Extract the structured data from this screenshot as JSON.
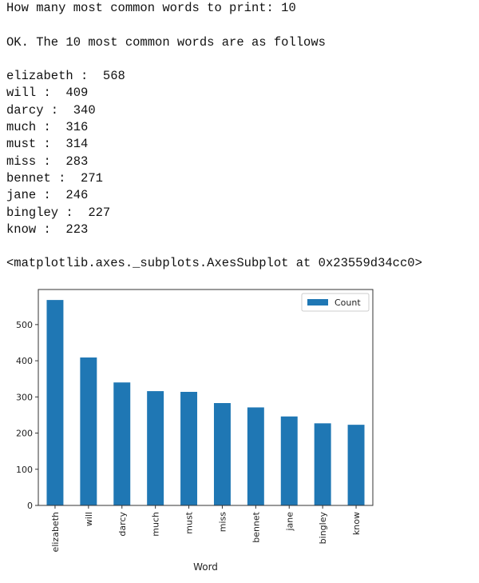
{
  "output": {
    "prompt_line": "How many most common words to print: 10",
    "status_line": "OK. The 10 most common words are as follows",
    "word_counts": [
      "elizabeth :  568",
      "will :  409",
      "darcy :  340",
      "much :  316",
      "must :  314",
      "miss :  283",
      "bennet :  271",
      "jane :  246",
      "bingley :  227",
      "know :  223"
    ],
    "repr_line": "<matplotlib.axes._subplots.AxesSubplot at 0x23559d34cc0>"
  },
  "chart_data": {
    "type": "bar",
    "categories": [
      "elizabeth",
      "will",
      "darcy",
      "much",
      "must",
      "miss",
      "bennet",
      "jane",
      "bingley",
      "know"
    ],
    "series": [
      {
        "name": "Count",
        "values": [
          568,
          409,
          340,
          316,
          314,
          283,
          271,
          246,
          227,
          223
        ]
      }
    ],
    "xlabel": "Word",
    "ylabel": "",
    "ylim": [
      0,
      597
    ],
    "yticks": [
      0,
      100,
      200,
      300,
      400,
      500
    ],
    "legend": "top-right",
    "grid": false,
    "bar_color": "#1f77b4"
  }
}
